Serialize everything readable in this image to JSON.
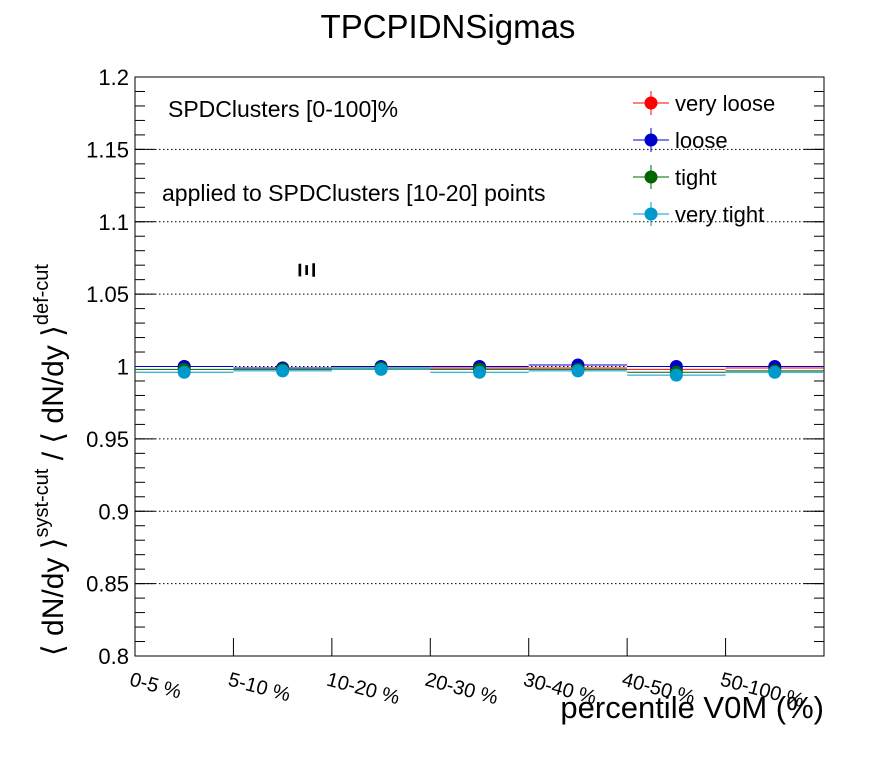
{
  "chart_data": {
    "type": "scatter",
    "title": "TPCPIDNSigmas",
    "xlabel": "percentile V0M (%)",
    "ylabel": "⟨ dN/dy ⟩syst-cut / ⟨ dN/dy ⟩def-cut",
    "ylabel_parts": {
      "a": "⟨ dN/dy ⟩",
      "a_sup": "syst-cut",
      "slash": " / ",
      "b": "⟨ dN/dy ⟩",
      "b_sup": "def-cut"
    },
    "categories": [
      "0-5 %",
      "5-10 %",
      "10-20 %",
      "20-30 %",
      "30-40 %",
      "40-50 %",
      "50-100 %"
    ],
    "ylim": [
      0.8,
      1.2
    ],
    "yticks": [
      0.8,
      0.85,
      0.9,
      0.95,
      1,
      1.05,
      1.1,
      1.15,
      1.2
    ],
    "ytick_labels": [
      "0.8",
      "0.85",
      "0.9",
      "0.95",
      "1",
      "1.05",
      "1.1",
      "1.15",
      "1.2"
    ],
    "grid": "horizontal-dotted",
    "legend_position": "top-right",
    "annotations": [
      "SPDClusters [0-100]%",
      "applied to SPDClusters [10-20] points",
      "Ξ"
    ],
    "series": [
      {
        "name": "very loose",
        "color": "#ff0000",
        "values": [
          1.0,
          0.999,
          0.999,
          0.999,
          0.999,
          0.998,
          0.999
        ]
      },
      {
        "name": "loose",
        "color": "#0000cc",
        "values": [
          1.0,
          0.999,
          1.0,
          1.0,
          1.001,
          1.0,
          1.0
        ]
      },
      {
        "name": "tight",
        "color": "#006600",
        "values": [
          0.998,
          0.998,
          0.999,
          0.998,
          0.998,
          0.996,
          0.997
        ]
      },
      {
        "name": "very tight",
        "color": "#0099cc",
        "values": [
          0.996,
          0.997,
          0.998,
          0.996,
          0.997,
          0.994,
          0.996
        ]
      }
    ]
  }
}
